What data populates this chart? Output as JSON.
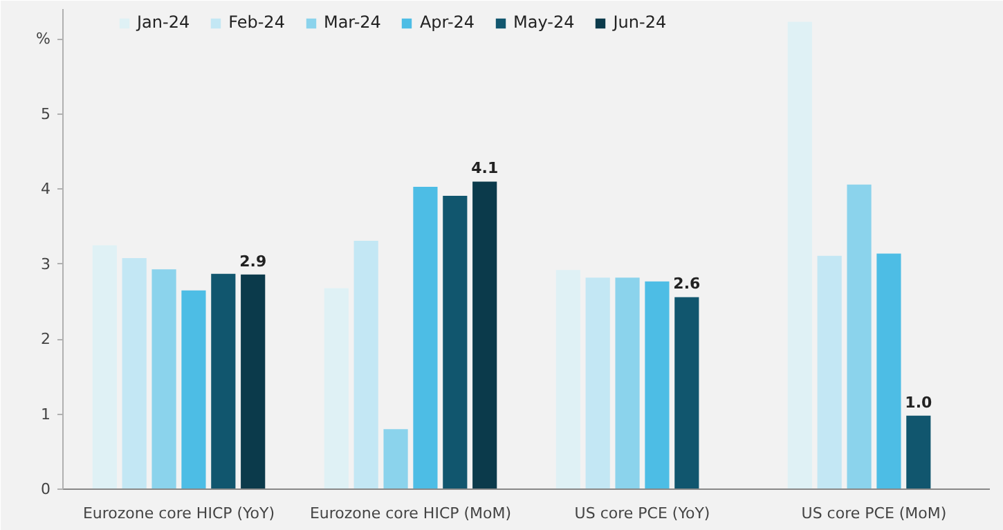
{
  "chart_data": {
    "type": "bar",
    "categories": [
      "Eurozone core HICP (YoY)",
      "Eurozone core HICP (MoM)",
      "US core PCE (YoY)",
      "US core PCE (MoM)"
    ],
    "series": [
      {
        "name": "Jan-24",
        "color": "#dff1f5",
        "values": [
          3.25,
          2.68,
          2.92,
          6.23
        ]
      },
      {
        "name": "Feb-24",
        "color": "#c3e7f4",
        "values": [
          3.08,
          3.31,
          2.82,
          3.11
        ]
      },
      {
        "name": "Mar-24",
        "color": "#8bd3ec",
        "values": [
          2.93,
          0.8,
          2.82,
          4.06
        ]
      },
      {
        "name": "Apr-24",
        "color": "#4dbde5",
        "values": [
          2.65,
          4.03,
          2.77,
          3.14
        ]
      },
      {
        "name": "May-24",
        "color": "#11566e",
        "values": [
          2.87,
          3.91,
          2.56,
          0.98
        ],
        "value_labels": [
          null,
          null,
          "2.6",
          "1.0"
        ]
      },
      {
        "name": "Jun-24",
        "color": "#0b3a4b",
        "values": [
          2.86,
          4.1,
          null,
          null
        ],
        "value_labels": [
          "2.9",
          "4.1",
          null,
          null
        ]
      }
    ],
    "ylim": [
      0,
      6.4
    ],
    "yticks": [
      0,
      1,
      2,
      3,
      4,
      5,
      {
        "value": 6,
        "label": "%"
      }
    ],
    "grid": false,
    "legend": "top left"
  }
}
